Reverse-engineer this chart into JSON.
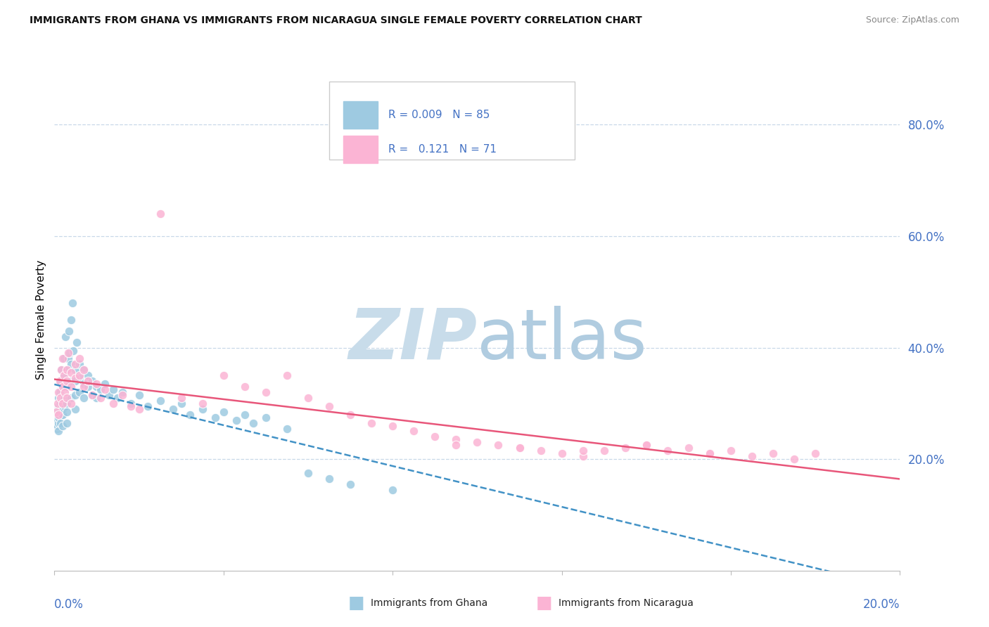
{
  "title": "IMMIGRANTS FROM GHANA VS IMMIGRANTS FROM NICARAGUA SINGLE FEMALE POVERTY CORRELATION CHART",
  "source": "Source: ZipAtlas.com",
  "ylabel": "Single Female Poverty",
  "ghana_R": 0.009,
  "ghana_N": 85,
  "nicaragua_R": 0.121,
  "nicaragua_N": 71,
  "ghana_color": "#9ecae1",
  "nicaragua_color": "#fbb4d4",
  "ghana_trend_color": "#4292c6",
  "nicaragua_trend_color": "#e8567a",
  "watermark_ZIP_color": "#c8dcea",
  "watermark_atlas_color": "#b0cce0",
  "background_color": "#ffffff",
  "grid_color": "#c8d8e8",
  "xlim": [
    0.0,
    0.2
  ],
  "ylim": [
    0.0,
    0.9
  ],
  "ytick_vals": [
    0.2,
    0.4,
    0.6,
    0.8
  ],
  "ytick_labels": [
    "20.0%",
    "40.0%",
    "60.0%",
    "80.0%"
  ],
  "ghana_scatter_x": [
    0.0005,
    0.0006,
    0.0007,
    0.0007,
    0.0008,
    0.0009,
    0.001,
    0.001,
    0.001,
    0.001,
    0.0012,
    0.0013,
    0.0014,
    0.0015,
    0.0015,
    0.0016,
    0.0017,
    0.0018,
    0.0019,
    0.002,
    0.002,
    0.002,
    0.002,
    0.002,
    0.0022,
    0.0023,
    0.0025,
    0.0025,
    0.0026,
    0.003,
    0.003,
    0.003,
    0.003,
    0.003,
    0.0032,
    0.0035,
    0.0036,
    0.004,
    0.004,
    0.004,
    0.004,
    0.0042,
    0.0045,
    0.005,
    0.005,
    0.005,
    0.005,
    0.0053,
    0.006,
    0.006,
    0.006,
    0.007,
    0.007,
    0.007,
    0.008,
    0.008,
    0.009,
    0.009,
    0.01,
    0.01,
    0.011,
    0.012,
    0.013,
    0.014,
    0.015,
    0.016,
    0.018,
    0.02,
    0.022,
    0.025,
    0.028,
    0.03,
    0.032,
    0.035,
    0.038,
    0.04,
    0.043,
    0.045,
    0.047,
    0.05,
    0.055,
    0.06,
    0.065,
    0.07,
    0.08
  ],
  "ghana_scatter_y": [
    0.27,
    0.255,
    0.29,
    0.26,
    0.28,
    0.265,
    0.31,
    0.275,
    0.295,
    0.25,
    0.32,
    0.285,
    0.34,
    0.3,
    0.265,
    0.36,
    0.28,
    0.295,
    0.31,
    0.33,
    0.305,
    0.28,
    0.26,
    0.29,
    0.35,
    0.38,
    0.31,
    0.295,
    0.42,
    0.36,
    0.33,
    0.3,
    0.285,
    0.265,
    0.38,
    0.43,
    0.39,
    0.45,
    0.37,
    0.34,
    0.31,
    0.48,
    0.395,
    0.36,
    0.34,
    0.315,
    0.29,
    0.41,
    0.37,
    0.345,
    0.32,
    0.36,
    0.335,
    0.31,
    0.35,
    0.33,
    0.34,
    0.315,
    0.33,
    0.31,
    0.325,
    0.335,
    0.315,
    0.325,
    0.31,
    0.32,
    0.3,
    0.315,
    0.295,
    0.305,
    0.29,
    0.3,
    0.28,
    0.29,
    0.275,
    0.285,
    0.27,
    0.28,
    0.265,
    0.275,
    0.255,
    0.175,
    0.165,
    0.155,
    0.145
  ],
  "nicaragua_scatter_x": [
    0.0005,
    0.0007,
    0.001,
    0.001,
    0.0012,
    0.0015,
    0.0016,
    0.002,
    0.002,
    0.002,
    0.0022,
    0.0025,
    0.003,
    0.003,
    0.003,
    0.0032,
    0.004,
    0.004,
    0.004,
    0.005,
    0.005,
    0.006,
    0.006,
    0.007,
    0.007,
    0.008,
    0.009,
    0.01,
    0.011,
    0.012,
    0.014,
    0.016,
    0.018,
    0.02,
    0.025,
    0.03,
    0.035,
    0.04,
    0.045,
    0.05,
    0.055,
    0.06,
    0.065,
    0.07,
    0.075,
    0.08,
    0.085,
    0.09,
    0.095,
    0.1,
    0.105,
    0.11,
    0.115,
    0.12,
    0.125,
    0.13,
    0.135,
    0.14,
    0.145,
    0.15,
    0.155,
    0.16,
    0.165,
    0.17,
    0.175,
    0.18,
    0.095,
    0.11,
    0.125,
    0.14,
    0.155
  ],
  "nicaragua_scatter_y": [
    0.285,
    0.3,
    0.32,
    0.28,
    0.34,
    0.31,
    0.36,
    0.33,
    0.3,
    0.38,
    0.35,
    0.32,
    0.36,
    0.34,
    0.31,
    0.39,
    0.355,
    0.33,
    0.3,
    0.37,
    0.345,
    0.38,
    0.35,
    0.36,
    0.33,
    0.34,
    0.315,
    0.335,
    0.31,
    0.325,
    0.3,
    0.315,
    0.295,
    0.29,
    0.64,
    0.31,
    0.3,
    0.35,
    0.33,
    0.32,
    0.35,
    0.31,
    0.295,
    0.28,
    0.265,
    0.26,
    0.25,
    0.24,
    0.235,
    0.23,
    0.225,
    0.22,
    0.215,
    0.21,
    0.205,
    0.215,
    0.22,
    0.225,
    0.215,
    0.22,
    0.21,
    0.215,
    0.205,
    0.21,
    0.2,
    0.21,
    0.225,
    0.22,
    0.215,
    0.225,
    0.21
  ]
}
